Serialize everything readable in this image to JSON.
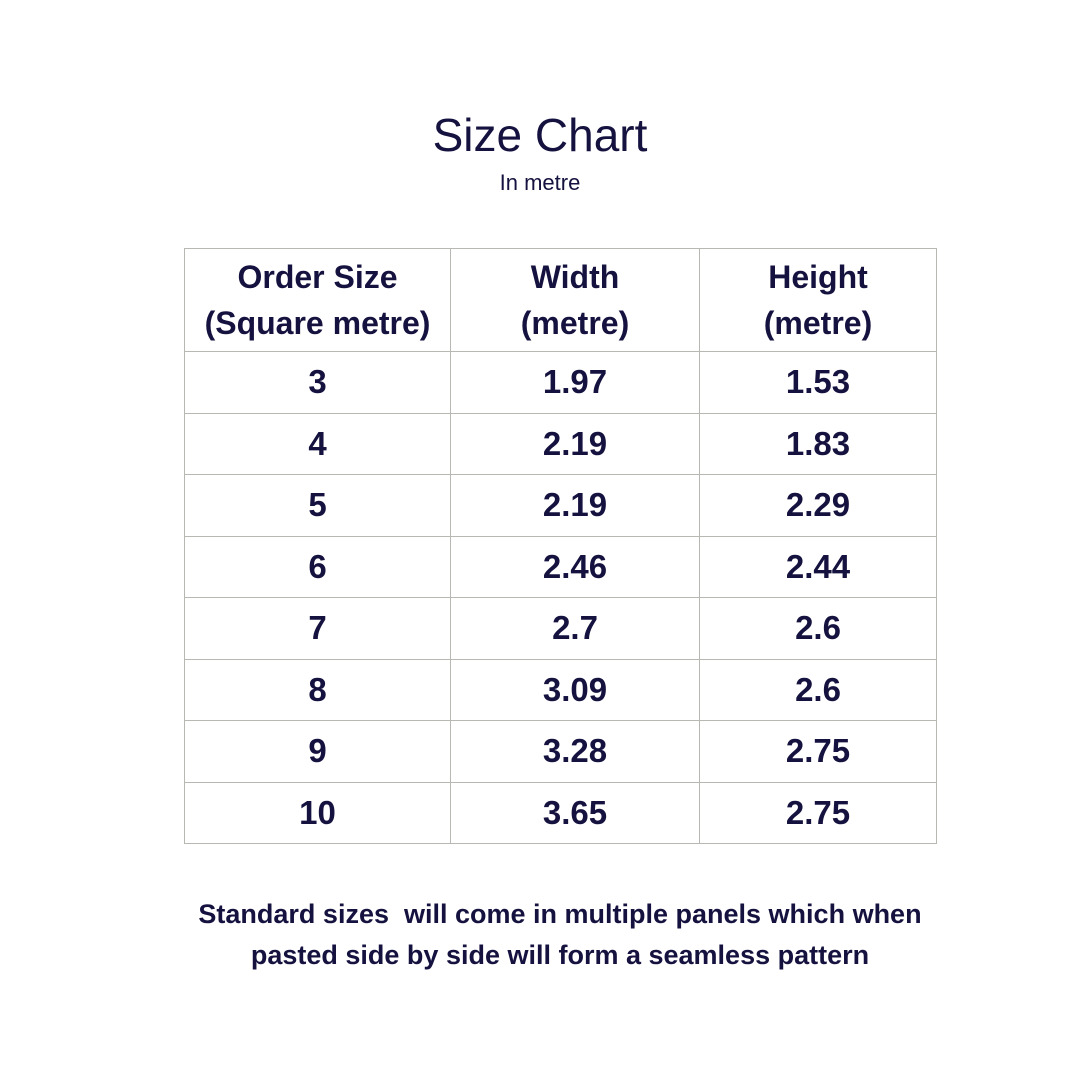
{
  "title": "Size Chart",
  "subtitle": "In metre",
  "table": {
    "headers": [
      [
        "Order Size",
        "(Square metre)"
      ],
      [
        "Width",
        "(metre)"
      ],
      [
        "Height",
        "(metre)"
      ]
    ],
    "rows": [
      [
        "3",
        "1.97",
        "1.53"
      ],
      [
        "4",
        "2.19",
        "1.83"
      ],
      [
        "5",
        "2.19",
        "2.29"
      ],
      [
        "6",
        "2.46",
        "2.44"
      ],
      [
        "7",
        "2.7",
        "2.6"
      ],
      [
        "8",
        "3.09",
        "2.6"
      ],
      [
        "9",
        "3.28",
        "2.75"
      ],
      [
        "10",
        "3.65",
        "2.75"
      ]
    ]
  },
  "note": [
    "Standard sizes  will come in multiple panels which when",
    "pasted side by side will form a seamless pattern"
  ],
  "colors": {
    "text": "#15123f",
    "border": "#b8b8b2"
  }
}
